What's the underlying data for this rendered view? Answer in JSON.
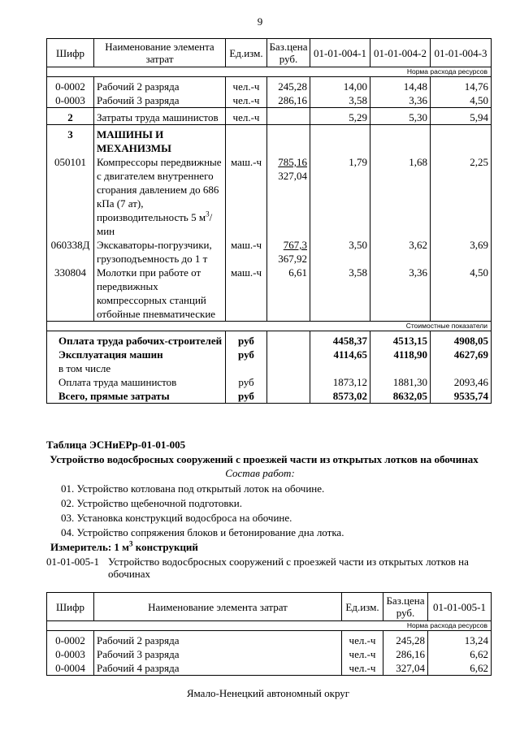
{
  "page_number": "9",
  "table1": {
    "header": [
      "Шифр",
      "Наименование элемента затрат",
      "Ед.изм.",
      "Баз.цена руб.",
      "01-01-004-1",
      "01-01-004-2",
      "01-01-004-3"
    ],
    "subheader": "Норма расхода ресурсов",
    "groups": [
      [
        {
          "code": "0-0002",
          "name": "Рабочий 2 разряда",
          "unit": "чел.-ч",
          "price": "245,28",
          "values": [
            "14,00",
            "14,48",
            "14,76"
          ]
        },
        {
          "code": "0-0003",
          "name": "Рабочий 3 разряда",
          "unit": "чел.-ч",
          "price": "286,16",
          "values": [
            "3,58",
            "3,36",
            "4,50"
          ]
        }
      ],
      [
        {
          "code": "2",
          "name": "Затраты труда машинистов",
          "unit": "чел.-ч",
          "values": [
            "5,29",
            "5,30",
            "5,94"
          ]
        }
      ],
      [
        {
          "code": "3",
          "name": "МАШИНЫ И МЕХАНИЗМЫ"
        },
        {
          "code": "050101",
          "name": [
            "Компрессоры передвижные с двигателем внутреннего сгорания давлением до 686 кПа (7 ат), производительность 5 м",
            {
              "sup": "3"
            },
            "/мин"
          ],
          "unit": "маш.-ч",
          "price": [
            "785,16",
            "327,04"
          ],
          "values": [
            "1,79",
            "1,68",
            "2,25"
          ]
        },
        {
          "code": "060338Д",
          "name": "Экскаваторы-погрузчики, грузоподъемность до 1 т",
          "unit": "маш.-ч",
          "price": [
            "767,3",
            "367,92"
          ],
          "values": [
            "3,50",
            "3,62",
            "3,69"
          ]
        },
        {
          "code": "330804",
          "name": "Молотки при работе от передвижных компрессорных станций отбойные пневматические",
          "unit": "маш.-ч",
          "price": "6,61",
          "values": [
            "3,58",
            "3,36",
            "4,50"
          ]
        }
      ]
    ],
    "cost_header": "Стоимостные показатели",
    "cost_rows": [
      {
        "name": "Оплата труда рабочих-строителей",
        "unit": "руб",
        "values": [
          "4458,37",
          "4513,15",
          "4908,05"
        ]
      },
      {
        "name": "Эксплуатация машин",
        "unit": "руб",
        "values": [
          "4114,65",
          "4118,90",
          "4627,69"
        ]
      },
      {
        "name": "в том числе"
      },
      {
        "name": "Оплата труда машинистов",
        "unit": "руб",
        "values": [
          "1873,12",
          "1881,30",
          "2093,46"
        ]
      },
      {
        "name": "Всего, прямые затраты",
        "unit": "руб",
        "values": [
          "8573,02",
          "8632,05",
          "9535,74"
        ]
      }
    ]
  },
  "section": {
    "table_title": "Таблица  ЭСНиЕРр-01-01-005",
    "heading": "Устройство водосбросных сооружений с проезжей части из открытых лотков на обочинах",
    "composition_title": "Состав работ:",
    "works": [
      "01. Устройство котлована под  открытый лоток на обочине.",
      "02. Устройство щебеночной подготовки.",
      "03. Установка конструкций водосброса на обочине.",
      "04. Устройство сопряжения блоков и бетонирование дна лотка."
    ],
    "measure": [
      "Измеритель: 1 м",
      {
        "sup": "3"
      },
      " конструкций"
    ],
    "item_code": "01-01-005-1",
    "item_text_lines": [
      "Устройство водосбросных сооружений с проезжей части из открытых лотков на",
      "обочинах"
    ]
  },
  "table2": {
    "header": [
      "Шифр",
      "Наименование элемента затрат",
      "Ед.изм.",
      "Баз.цена руб.",
      "01-01-005-1"
    ],
    "subheader": "Норма расхода ресурсов",
    "rows": [
      {
        "code": "0-0002",
        "name": "Рабочий 2 разряда",
        "unit": "чел.-ч",
        "price": "245,28",
        "values": [
          "13,24"
        ]
      },
      {
        "code": "0-0003",
        "name": "Рабочий 3 разряда",
        "unit": "чел.-ч",
        "price": "286,16",
        "values": [
          "6,62"
        ]
      },
      {
        "code": "0-0004",
        "name": "Рабочий 4 разряда",
        "unit": "чел.-ч",
        "price": "327,04",
        "values": [
          "6,62"
        ]
      }
    ]
  },
  "footer": "Ямало-Ненецкий автономный округ"
}
